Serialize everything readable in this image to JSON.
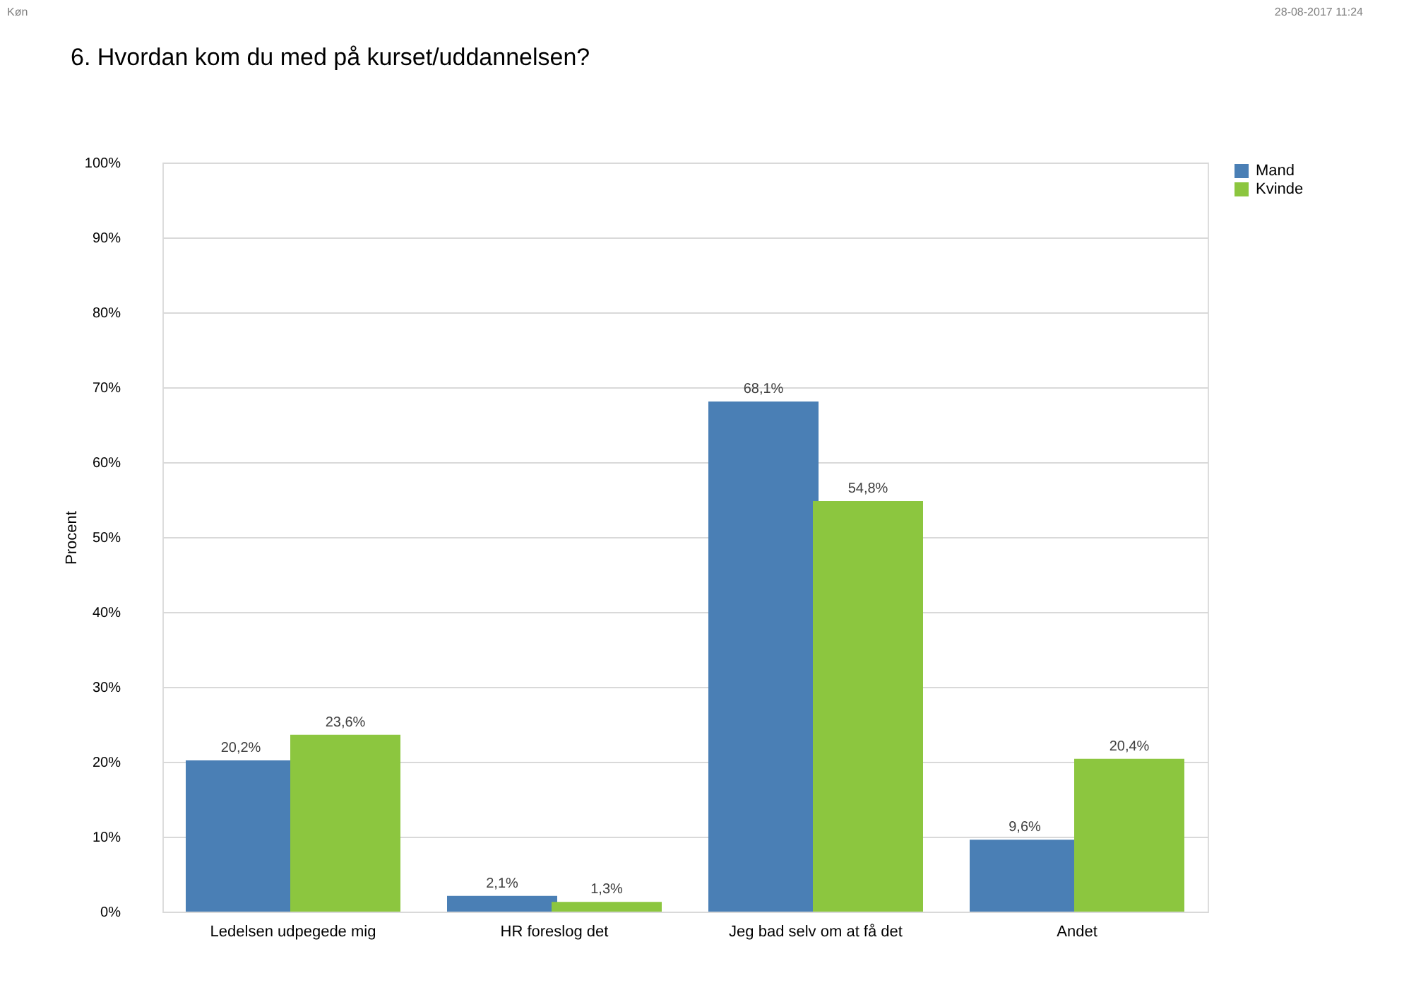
{
  "chart_data": {
    "type": "bar",
    "title": "6. Hvordan kom du med på kurset/uddannelsen?",
    "ylabel": "Procent",
    "annotations": [
      "Køn",
      "28-08-2017 11:24"
    ],
    "categories": [
      "Ledelsen udpegede mig",
      "HR foreslog det",
      "Jeg bad selv om at få det",
      "Andet"
    ],
    "series": [
      {
        "name": "Mand",
        "color": "#4a7fb5",
        "values": [
          20.2,
          2.1,
          68.1,
          9.6
        ],
        "value_labels": [
          "20,2%",
          "2,1%",
          "68,1%",
          "9,6%"
        ]
      },
      {
        "name": "Kvinde",
        "color": "#8cc63f",
        "values": [
          23.6,
          1.3,
          54.8,
          20.4
        ],
        "value_labels": [
          "23,6%",
          "1,3%",
          "54,8%",
          "20,4%"
        ]
      }
    ],
    "ylim": [
      0,
      100
    ],
    "yticks": [
      {
        "value": 0,
        "label": "0%"
      },
      {
        "value": 10,
        "label": "10%"
      },
      {
        "value": 20,
        "label": "20%"
      },
      {
        "value": 30,
        "label": "30%"
      },
      {
        "value": 40,
        "label": "40%"
      },
      {
        "value": 50,
        "label": "50%"
      },
      {
        "value": 60,
        "label": "60%"
      },
      {
        "value": 70,
        "label": "70%"
      },
      {
        "value": 80,
        "label": "80%"
      },
      {
        "value": 90,
        "label": "90%"
      },
      {
        "value": 100,
        "label": "100%"
      }
    ],
    "grid": "y",
    "legend": "right"
  }
}
